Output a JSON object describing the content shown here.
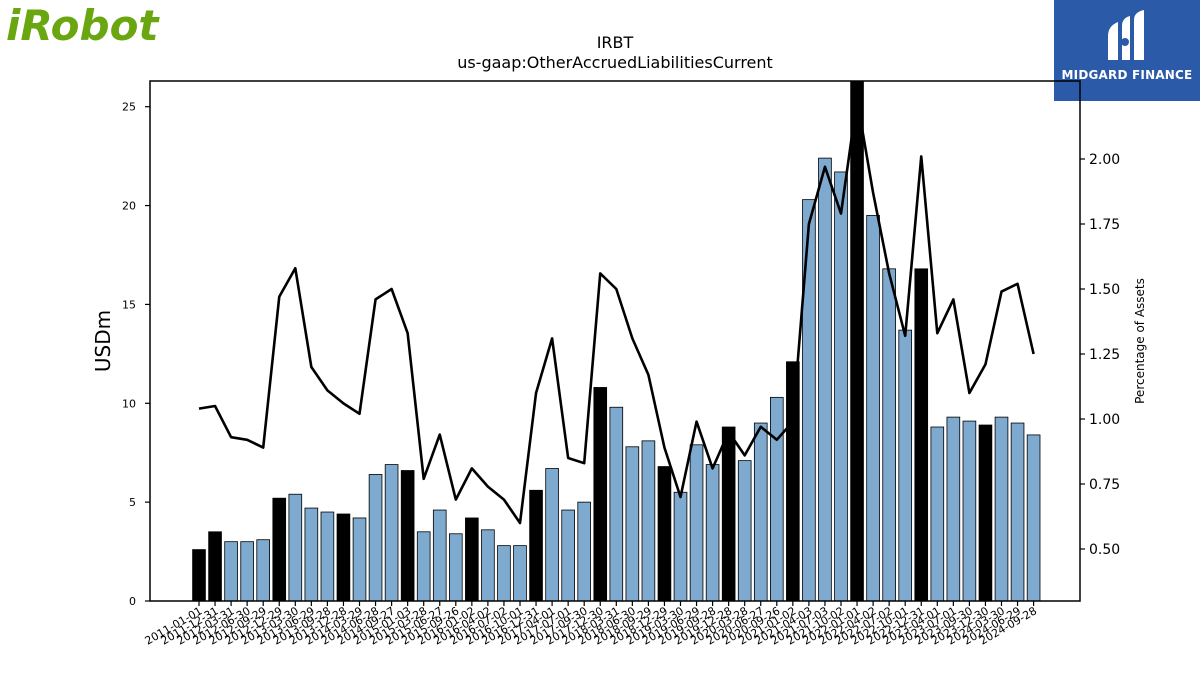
{
  "logos": {
    "left_text": "iRobot",
    "left_color": "#6aa610",
    "right_text": "MIDGARD FINANCE",
    "right_bg": "#2b5aa8"
  },
  "chart_data": {
    "type": "bar",
    "title": "IRBT",
    "subtitle": "us-gaap:OtherAccruedLiabilitiesCurrent",
    "ylabel": "USDm",
    "y2label": "Percentage of Assets",
    "ylim": [
      0,
      26.3
    ],
    "y2lim": [
      0.3,
      2.3
    ],
    "yticks": [
      0,
      5,
      10,
      15,
      20,
      25
    ],
    "y2ticks": [
      "0.50",
      "0.75",
      "1.00",
      "1.25",
      "1.50",
      "1.75",
      "2.00"
    ],
    "colors": {
      "bar_quarter": "#7eaacf",
      "bar_year": "#000000",
      "line": "#000000"
    },
    "categories": [
      "2011-01-01",
      "2011-12-31",
      "2012-03-31",
      "2012-06-30",
      "2012-09-29",
      "2012-12-29",
      "2013-03-30",
      "2013-06-29",
      "2013-09-28",
      "2013-12-28",
      "2014-03-29",
      "2014-06-28",
      "2014-09-27",
      "2015-01-03",
      "2015-03-28",
      "2015-06-27",
      "2015-09-26",
      "2016-01-02",
      "2016-04-02",
      "2016-07-02",
      "2016-10-01",
      "2016-12-31",
      "2017-04-01",
      "2017-07-01",
      "2017-09-30",
      "2017-12-30",
      "2018-03-31",
      "2018-06-30",
      "2018-09-29",
      "2018-12-29",
      "2019-03-30",
      "2019-06-29",
      "2019-09-28",
      "2019-12-28",
      "2020-03-28",
      "2020-06-27",
      "2020-09-26",
      "2021-01-02",
      "2021-04-03",
      "2021-07-03",
      "2021-10-02",
      "2022-01-01",
      "2022-04-02",
      "2022-07-02",
      "2022-10-01",
      "2022-12-31",
      "2023-04-01",
      "2023-07-01",
      "2023-09-30",
      "2023-12-30",
      "2024-03-30",
      "2024-06-29",
      "2024-09-28"
    ],
    "xtick_labels": [
      "2011-01-01",
      "2011-12-31",
      "2012-03-31",
      "2012-06-30",
      "2012-09-29",
      "2012-12-29",
      "2013-03-30",
      "2013-06-29",
      "2013-09-28",
      "2013-12-28",
      "2014-03-29",
      "2014-06-28",
      "2014-09-27",
      "2015-01-03",
      "2015-03-28",
      "2015-06-27",
      "2015-09-26",
      "2016-01-02",
      "2016-04-02",
      "2016-07-02",
      "2016-10-01",
      "2016-12-31",
      "2017-04-01",
      "2017-07-01",
      "2017-09-30",
      "2017-12-30",
      "2018-03-31",
      "2018-06-30",
      "2018-09-29",
      "2018-12-29",
      "2019-03-30",
      "2019-06-29",
      "2019-09-28",
      "2019-12-28",
      "2020-03-28",
      "2020-06-27",
      "2020-09-26",
      "2021-01-02",
      "2021-04-03",
      "2021-07-03",
      "2021-10-02",
      "2022-01-01",
      "2022-04-02",
      "2022-07-02",
      "2022-10-01",
      "2022-12-31",
      "2023-04-01",
      "2023-07-01",
      "2023-09-30",
      "2023-12-30",
      "2024-03-30",
      "2024-06-29",
      "2024-09-28"
    ],
    "series": [
      {
        "values": [
          2.6,
          3.5,
          3.0,
          3.0,
          3.1,
          5.2,
          5.4,
          4.7,
          4.5,
          4.4,
          4.2,
          6.4,
          6.9,
          6.6,
          3.5,
          4.6,
          3.4,
          4.2,
          3.6,
          2.8,
          2.8,
          5.6,
          6.7,
          4.6,
          5.0,
          10.8,
          9.8,
          7.8,
          8.1,
          6.8,
          5.5,
          7.9,
          6.9,
          8.8,
          7.1,
          9.0,
          10.3,
          12.1,
          20.3,
          22.4,
          21.7,
          26.5,
          19.5,
          16.8,
          13.7,
          16.8,
          8.8,
          9.3,
          9.1,
          8.9,
          9.3,
          9.0,
          8.4
        ],
        "year_end": [
          true,
          true,
          false,
          false,
          false,
          true,
          false,
          false,
          false,
          true,
          false,
          false,
          false,
          true,
          false,
          false,
          false,
          true,
          false,
          false,
          false,
          true,
          false,
          false,
          false,
          true,
          false,
          false,
          false,
          true,
          false,
          false,
          false,
          true,
          false,
          false,
          false,
          true,
          false,
          false,
          false,
          true,
          false,
          false,
          false,
          true,
          false,
          false,
          false,
          true,
          false,
          false,
          false
        ]
      },
      {
        "axis": "right",
        "values": [
          1.04,
          1.05,
          0.93,
          0.92,
          0.89,
          1.47,
          1.58,
          1.2,
          1.11,
          1.06,
          1.02,
          1.46,
          1.5,
          1.33,
          0.77,
          0.94,
          0.69,
          0.81,
          0.74,
          0.69,
          0.6,
          1.1,
          1.31,
          0.85,
          0.83,
          1.56,
          1.5,
          1.31,
          1.17,
          0.89,
          0.7,
          0.99,
          0.81,
          0.95,
          0.86,
          0.97,
          0.92,
          0.99,
          1.75,
          1.97,
          1.79,
          2.23,
          1.87,
          1.56,
          1.32,
          2.01,
          1.33,
          1.46,
          1.1,
          1.21,
          1.49,
          1.52,
          1.25
        ]
      }
    ]
  }
}
